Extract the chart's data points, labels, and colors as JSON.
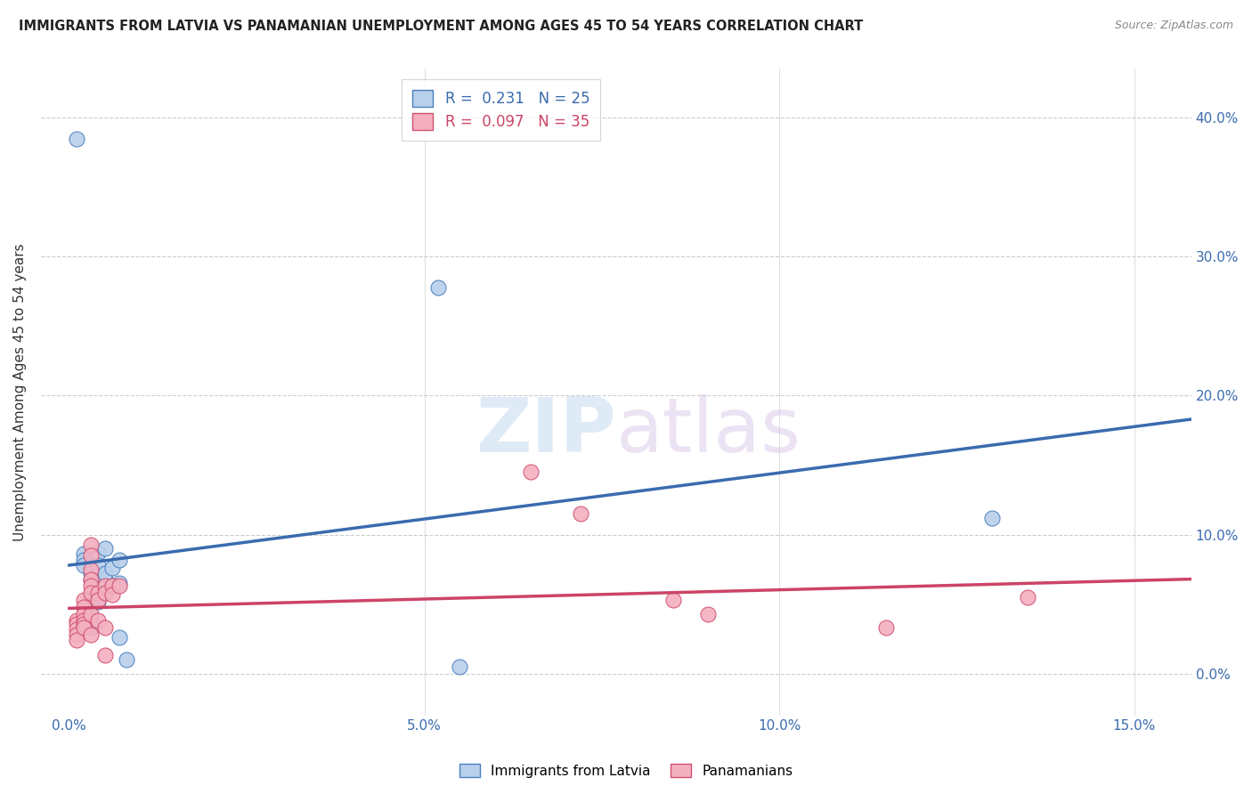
{
  "title": "IMMIGRANTS FROM LATVIA VS PANAMANIAN UNEMPLOYMENT AMONG AGES 45 TO 54 YEARS CORRELATION CHART",
  "source": "Source: ZipAtlas.com",
  "xlabel_ticks": [
    "0.0%",
    "5.0%",
    "10.0%",
    "15.0%"
  ],
  "xlabel_tick_vals": [
    0.0,
    0.05,
    0.1,
    0.15
  ],
  "ylabel_ticks": [
    "0.0%",
    "10.0%",
    "20.0%",
    "30.0%",
    "40.0%"
  ],
  "ylabel_tick_vals": [
    0.0,
    0.1,
    0.2,
    0.3,
    0.4
  ],
  "xlim": [
    -0.004,
    0.158
  ],
  "ylim": [
    -0.03,
    0.435
  ],
  "ylabel": "Unemployment Among Ages 45 to 54 years",
  "legend1_R": "0.231",
  "legend1_N": "25",
  "legend2_R": "0.097",
  "legend2_N": "35",
  "blue_color": "#b8d0ea",
  "blue_edge_color": "#4a7fc0",
  "blue_line_color": "#3a6baf",
  "pink_color": "#f4b0c0",
  "pink_edge_color": "#d05070",
  "pink_line_color": "#cc4466",
  "watermark_zip": "ZIP",
  "watermark_atlas": "atlas",
  "blue_scatter": [
    [
      0.001,
      0.385
    ],
    [
      0.002,
      0.086
    ],
    [
      0.002,
      0.082
    ],
    [
      0.002,
      0.078
    ],
    [
      0.003,
      0.072
    ],
    [
      0.003,
      0.068
    ],
    [
      0.003,
      0.055
    ],
    [
      0.003,
      0.05
    ],
    [
      0.003,
      0.038
    ],
    [
      0.003,
      0.033
    ],
    [
      0.004,
      0.087
    ],
    [
      0.004,
      0.078
    ],
    [
      0.004,
      0.063
    ],
    [
      0.004,
      0.052
    ],
    [
      0.005,
      0.09
    ],
    [
      0.005,
      0.068
    ],
    [
      0.005,
      0.072
    ],
    [
      0.006,
      0.076
    ],
    [
      0.007,
      0.082
    ],
    [
      0.007,
      0.026
    ],
    [
      0.008,
      0.01
    ],
    [
      0.052,
      0.278
    ],
    [
      0.055,
      0.005
    ],
    [
      0.13,
      0.112
    ],
    [
      0.007,
      0.065
    ]
  ],
  "pink_scatter": [
    [
      0.001,
      0.038
    ],
    [
      0.001,
      0.036
    ],
    [
      0.001,
      0.032
    ],
    [
      0.001,
      0.028
    ],
    [
      0.001,
      0.024
    ],
    [
      0.002,
      0.053
    ],
    [
      0.002,
      0.048
    ],
    [
      0.002,
      0.043
    ],
    [
      0.002,
      0.038
    ],
    [
      0.002,
      0.036
    ],
    [
      0.002,
      0.033
    ],
    [
      0.003,
      0.093
    ],
    [
      0.003,
      0.085
    ],
    [
      0.003,
      0.075
    ],
    [
      0.003,
      0.068
    ],
    [
      0.003,
      0.063
    ],
    [
      0.003,
      0.058
    ],
    [
      0.003,
      0.043
    ],
    [
      0.003,
      0.028
    ],
    [
      0.004,
      0.058
    ],
    [
      0.004,
      0.053
    ],
    [
      0.004,
      0.038
    ],
    [
      0.005,
      0.063
    ],
    [
      0.005,
      0.058
    ],
    [
      0.005,
      0.033
    ],
    [
      0.006,
      0.063
    ],
    [
      0.006,
      0.057
    ],
    [
      0.007,
      0.063
    ],
    [
      0.065,
      0.145
    ],
    [
      0.072,
      0.115
    ],
    [
      0.085,
      0.053
    ],
    [
      0.09,
      0.043
    ],
    [
      0.115,
      0.033
    ],
    [
      0.135,
      0.055
    ],
    [
      0.005,
      0.013
    ]
  ],
  "blue_trendline": [
    [
      0.0,
      0.078
    ],
    [
      0.158,
      0.183
    ]
  ],
  "pink_trendline": [
    [
      0.0,
      0.047
    ],
    [
      0.158,
      0.068
    ]
  ]
}
